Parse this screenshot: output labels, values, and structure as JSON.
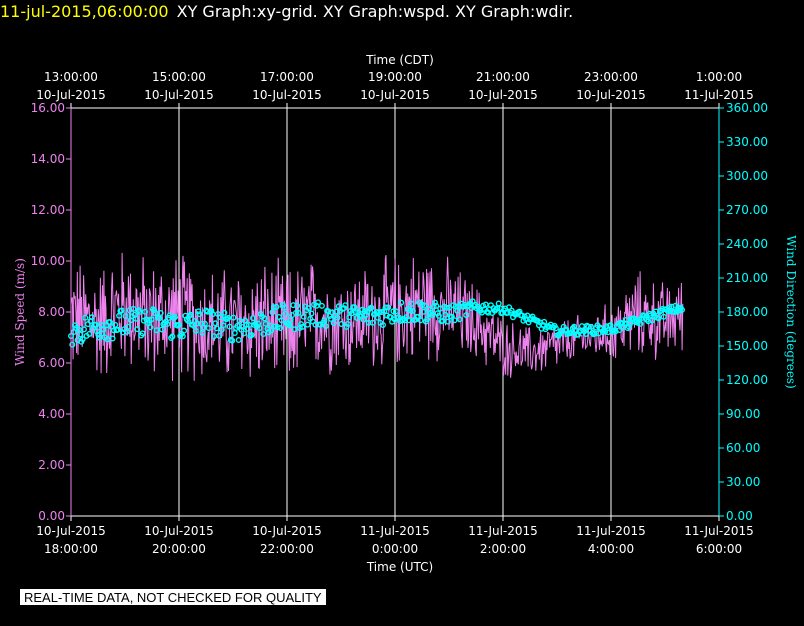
{
  "header": {
    "timestamp": "11-jul-2015,06:00:00",
    "graph_names": "XY Graph:xy-grid.  XY Graph:wspd.  XY Graph:wdir."
  },
  "disclaimer": "REAL-TIME DATA, NOT CHECKED FOR QUALITY",
  "chart_data": {
    "type": "line",
    "top_axis": {
      "label": "Time (CDT)",
      "ticks": [
        {
          "time": "13:00:00",
          "date": "10-Jul-2015"
        },
        {
          "time": "15:00:00",
          "date": "10-Jul-2015"
        },
        {
          "time": "17:00:00",
          "date": "10-Jul-2015"
        },
        {
          "time": "19:00:00",
          "date": "10-Jul-2015"
        },
        {
          "time": "21:00:00",
          "date": "10-Jul-2015"
        },
        {
          "time": "23:00:00",
          "date": "10-Jul-2015"
        },
        {
          "time": "1:00:00",
          "date": "11-Jul-2015"
        }
      ]
    },
    "bottom_axis": {
      "label": "Time (UTC)",
      "ticks": [
        {
          "date": "10-Jul-2015",
          "time": "18:00:00"
        },
        {
          "date": "10-Jul-2015",
          "time": "20:00:00"
        },
        {
          "date": "10-Jul-2015",
          "time": "22:00:00"
        },
        {
          "date": "11-Jul-2015",
          "time": "0:00:00"
        },
        {
          "date": "11-Jul-2015",
          "time": "2:00:00"
        },
        {
          "date": "11-Jul-2015",
          "time": "4:00:00"
        },
        {
          "date": "11-Jul-2015",
          "time": "6:00:00"
        }
      ],
      "x_range_hours_utc": [
        "2015-07-10 18:00",
        "2015-07-11 06:00"
      ]
    },
    "left_axis": {
      "label": "Wind Speed (m/s)",
      "ylim": [
        0,
        16
      ],
      "ticks": [
        "0.00",
        "2.00",
        "4.00",
        "6.00",
        "8.00",
        "10.00",
        "12.00",
        "14.00",
        "16.00"
      ],
      "color": "#ee82ee"
    },
    "right_axis": {
      "label": "Wind Direction (degrees)",
      "ylim": [
        0,
        360
      ],
      "ticks": [
        "0.00",
        "30.00",
        "60.00",
        "90.00",
        "120.00",
        "150.00",
        "180.00",
        "210.00",
        "240.00",
        "270.00",
        "300.00",
        "330.00",
        "360.00"
      ],
      "color": "#00ffff"
    },
    "grid": "vertical",
    "series": [
      {
        "name": "wspd",
        "style": "line",
        "color": "#ee82ee",
        "x": [
          "2015-07-10 18:00",
          "2015-07-10 18:30",
          "2015-07-10 19:00",
          "2015-07-10 19:30",
          "2015-07-10 20:00",
          "2015-07-10 20:30",
          "2015-07-10 21:00",
          "2015-07-10 21:30",
          "2015-07-10 22:00",
          "2015-07-10 22:30",
          "2015-07-10 23:00",
          "2015-07-10 23:30",
          "2015-07-11 00:00",
          "2015-07-11 00:30",
          "2015-07-11 01:00",
          "2015-07-11 01:30",
          "2015-07-11 02:00",
          "2015-07-11 02:30",
          "2015-07-11 03:00",
          "2015-07-11 03:30",
          "2015-07-11 04:00",
          "2015-07-11 04:30",
          "2015-07-11 05:00",
          "2015-07-11 05:20"
        ],
        "values": [
          7.8,
          7.6,
          8.2,
          7.7,
          7.9,
          7.5,
          7.4,
          7.6,
          7.3,
          7.9,
          7.6,
          7.8,
          8.0,
          8.3,
          8.1,
          7.6,
          6.6,
          6.4,
          6.7,
          7.0,
          7.2,
          7.9,
          7.6,
          8.0
        ],
        "spread": [
          1.8,
          1.8,
          1.9,
          1.8,
          1.9,
          1.8,
          1.8,
          1.9,
          1.9,
          1.7,
          1.6,
          1.6,
          1.7,
          1.7,
          1.5,
          1.2,
          0.9,
          0.8,
          0.8,
          0.7,
          0.9,
          1.3,
          1.2,
          1.1
        ]
      },
      {
        "name": "wdir",
        "style": "markers",
        "color": "#00ffff",
        "x": [
          "2015-07-10 18:00",
          "2015-07-10 18:30",
          "2015-07-10 19:00",
          "2015-07-10 19:30",
          "2015-07-10 20:00",
          "2015-07-10 20:30",
          "2015-07-10 21:00",
          "2015-07-10 21:30",
          "2015-07-10 22:00",
          "2015-07-10 22:30",
          "2015-07-10 23:00",
          "2015-07-10 23:30",
          "2015-07-11 00:00",
          "2015-07-11 00:30",
          "2015-07-11 01:00",
          "2015-07-11 01:30",
          "2015-07-11 02:00",
          "2015-07-11 02:30",
          "2015-07-11 03:00",
          "2015-07-11 03:30",
          "2015-07-11 04:00",
          "2015-07-11 04:30",
          "2015-07-11 05:00",
          "2015-07-11 05:20"
        ],
        "values": [
          162,
          168,
          170,
          172,
          167,
          172,
          166,
          170,
          175,
          178,
          177,
          176,
          180,
          181,
          178,
          184,
          183,
          173,
          163,
          164,
          165,
          172,
          180,
          184
        ],
        "spread": [
          12,
          13,
          13,
          12,
          13,
          12,
          12,
          12,
          12,
          11,
          10,
          10,
          10,
          10,
          8,
          6,
          4,
          4,
          4,
          4,
          4,
          4,
          4,
          3
        ]
      }
    ]
  }
}
